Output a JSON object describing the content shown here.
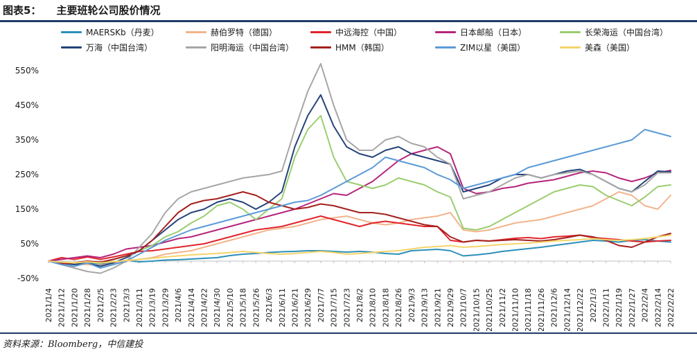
{
  "figure": {
    "label": "图表5：",
    "title": "主要班轮公司股价情况"
  },
  "source": "资料来源：Bloomberg，中信建投",
  "chart_data": {
    "type": "line",
    "title": "主要班轮公司股价情况",
    "xlabel": "",
    "ylabel": "",
    "ylim": [
      -50,
      570
    ],
    "yticks": [
      -50,
      50,
      150,
      250,
      350,
      450,
      550
    ],
    "ytick_labels": [
      "-50%",
      "50%",
      "150%",
      "250%",
      "350%",
      "450%",
      "550%"
    ],
    "grid": false,
    "legend_position": "top",
    "x_tick_labels": [
      "2021/1/4",
      "2021/1/12",
      "2021/1/20",
      "2021/1/28",
      "2021/2/5",
      "2021/2/23",
      "2021/3/3",
      "2021/3/11",
      "2021/3/19",
      "2021/3/29",
      "2021/4/6",
      "2021/4/14",
      "2021/4/22",
      "2021/4/30",
      "2021/5/10",
      "2021/5/18",
      "2021/5/26",
      "2021/6/3",
      "2021/6/11",
      "2021/6/21",
      "2021/6/29",
      "2021/7/7",
      "2021/7/15",
      "2021/7/23",
      "2021/8/2",
      "2021/8/10",
      "2021/8/18",
      "2021/8/26",
      "2021/9/3",
      "2021/9/13",
      "2021/9/21",
      "2021/9/29",
      "2021/10/7",
      "2021/10/15",
      "2021/10/25",
      "2021/11/2",
      "2021/11/10",
      "2021/11/18",
      "2021/11/26",
      "2021/12/6",
      "2021/12/14",
      "2021/12/22",
      "2022/1/3",
      "2022/1/11",
      "2022/1/19",
      "2022/1/27",
      "2022/2/4",
      "2022/2/14",
      "2022/2/22"
    ],
    "series": [
      {
        "name": "MAERSKb（丹麦）",
        "color": "#2b8fb8",
        "values": [
          0,
          -4,
          -6,
          -3,
          -8,
          -5,
          2,
          -2,
          0,
          3,
          4,
          6,
          8,
          10,
          16,
          20,
          22,
          25,
          27,
          28,
          30,
          30,
          28,
          26,
          28,
          26,
          22,
          20,
          30,
          32,
          34,
          30,
          15,
          18,
          22,
          28,
          32,
          36,
          40,
          45,
          50,
          55,
          60,
          58,
          55,
          60,
          62,
          58,
          55
        ]
      },
      {
        "name": "赫伯罗特（德国）",
        "color": "#f2b48a",
        "values": [
          0,
          -5,
          -8,
          -10,
          -12,
          -6,
          0,
          5,
          10,
          20,
          25,
          30,
          40,
          50,
          60,
          70,
          80,
          90,
          95,
          100,
          110,
          120,
          125,
          130,
          120,
          110,
          105,
          110,
          120,
          125,
          130,
          140,
          90,
          85,
          90,
          100,
          110,
          115,
          120,
          130,
          140,
          150,
          160,
          180,
          200,
          190,
          160,
          150,
          190
        ]
      },
      {
        "name": "中远海控（中国）",
        "color": "#e0242b",
        "values": [
          0,
          10,
          5,
          12,
          5,
          12,
          20,
          28,
          30,
          35,
          40,
          45,
          50,
          60,
          70,
          80,
          90,
          95,
          100,
          110,
          120,
          130,
          120,
          110,
          100,
          110,
          115,
          110,
          105,
          100,
          100,
          60,
          55,
          60,
          58,
          62,
          66,
          68,
          65,
          70,
          72,
          75,
          68,
          65,
          62,
          58,
          55,
          58,
          60
        ]
      },
      {
        "name": "日本邮船（日本）",
        "color": "#b5247a",
        "values": [
          0,
          5,
          10,
          15,
          10,
          20,
          35,
          40,
          45,
          55,
          65,
          70,
          80,
          90,
          100,
          110,
          120,
          130,
          140,
          150,
          165,
          180,
          195,
          190,
          210,
          230,
          260,
          290,
          310,
          320,
          330,
          310,
          210,
          195,
          200,
          210,
          215,
          225,
          230,
          235,
          245,
          255,
          260,
          255,
          240,
          230,
          240,
          255,
          262
        ]
      },
      {
        "name": "长荣海运（中国台湾）",
        "color": "#9acd6f",
        "values": [
          0,
          -5,
          -8,
          -2,
          -6,
          5,
          15,
          30,
          45,
          70,
          85,
          110,
          130,
          160,
          170,
          150,
          120,
          150,
          180,
          300,
          380,
          420,
          300,
          230,
          220,
          210,
          220,
          240,
          230,
          220,
          200,
          185,
          95,
          90,
          100,
          120,
          140,
          160,
          180,
          200,
          210,
          220,
          215,
          190,
          175,
          160,
          185,
          215,
          220
        ]
      },
      {
        "name": "万海（中国台湾）",
        "color": "#24427a",
        "values": [
          0,
          -6,
          -10,
          -5,
          -15,
          -5,
          10,
          30,
          60,
          90,
          120,
          140,
          150,
          170,
          180,
          170,
          150,
          170,
          200,
          330,
          420,
          480,
          390,
          330,
          310,
          300,
          320,
          330,
          310,
          300,
          290,
          280,
          200,
          210,
          220,
          240,
          250,
          250,
          240,
          250,
          260,
          265,
          250,
          230,
          210,
          200,
          230,
          260,
          258
        ]
      },
      {
        "name": "阳明海运（中国台湾）",
        "color": "#a6a6a6",
        "values": [
          0,
          -10,
          -20,
          -30,
          -35,
          -20,
          0,
          40,
          80,
          140,
          180,
          200,
          210,
          220,
          230,
          240,
          245,
          250,
          260,
          380,
          490,
          570,
          450,
          350,
          320,
          320,
          350,
          360,
          340,
          330,
          300,
          280,
          180,
          190,
          200,
          220,
          240,
          250,
          240,
          250,
          255,
          260,
          250,
          230,
          210,
          200,
          220,
          255,
          255
        ]
      },
      {
        "name": "HMM（韩国）",
        "color": "#a4201d",
        "values": [
          0,
          -8,
          -5,
          0,
          -3,
          5,
          15,
          30,
          60,
          100,
          140,
          165,
          175,
          180,
          190,
          200,
          190,
          170,
          160,
          150,
          155,
          165,
          160,
          150,
          140,
          140,
          135,
          125,
          115,
          105,
          100,
          70,
          55,
          60,
          58,
          60,
          62,
          60,
          58,
          62,
          68,
          75,
          70,
          60,
          45,
          40,
          55,
          70,
          80
        ]
      },
      {
        "name": "ZIM以星（美国）",
        "color": "#5a9ad6",
        "values": [
          0,
          -10,
          -15,
          -5,
          -20,
          -10,
          0,
          20,
          40,
          60,
          75,
          90,
          100,
          110,
          120,
          130,
          140,
          150,
          160,
          170,
          175,
          190,
          210,
          230,
          250,
          270,
          300,
          290,
          280,
          270,
          250,
          235,
          210,
          220,
          230,
          240,
          250,
          270,
          280,
          290,
          300,
          310,
          320,
          330,
          340,
          350,
          380,
          370,
          360
        ]
      },
      {
        "name": "美森（美国）",
        "color": "#f5d469",
        "values": [
          0,
          -3,
          -5,
          -2,
          -5,
          -2,
          2,
          5,
          8,
          12,
          15,
          18,
          20,
          22,
          25,
          28,
          25,
          22,
          20,
          22,
          25,
          28,
          25,
          20,
          22,
          25,
          28,
          30,
          35,
          40,
          42,
          45,
          40,
          42,
          45,
          48,
          50,
          52,
          55,
          58,
          60,
          62,
          65,
          62,
          60,
          62,
          65,
          70,
          75
        ]
      }
    ]
  }
}
